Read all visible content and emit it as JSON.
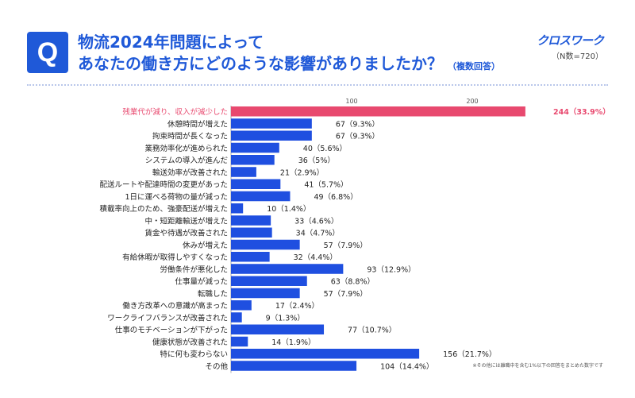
{
  "header": {
    "q_label": "Q",
    "title_line1": "物流2024年問題によって",
    "title_line2": "あなたの働き方にどのような影響がありましたか？",
    "title_note": "（複数回答）",
    "brand": "クロスワーク",
    "sample_size": "（N数=720）"
  },
  "footnote": "※その他には離職中を含む1%以下の回答をまとめた数字です",
  "colors": {
    "bar": "#1f4fe0",
    "highlight": "#e8496f",
    "label_highlight": "#e8496f"
  },
  "chart_data": {
    "type": "bar",
    "orientation": "horizontal",
    "categories": [
      "残業代が減り、収入が減少した",
      "休憩時間が増えた",
      "拘束時間が長くなった",
      "業務効率化が進められた",
      "システムの導入が進んだ",
      "輸送効率が改善された",
      "配送ルートや配達時間の変更があった",
      "1日に運べる荷物の量が減った",
      "積載率向上のため、強豪配送が増えた",
      "中・短距離輸送が増えた",
      "賃金や待遇が改善された",
      "休みが増えた",
      "有給休暇が取得しやすくなった",
      "労働条件が悪化した",
      "仕事量が減った",
      "転職した",
      "働き方改革への意識が高まった",
      "ワークライフバランスが改善された",
      "仕事のモチベーションが下がった",
      "健康状態が改善された",
      "特に何も変わらない",
      "その他"
    ],
    "values": [
      244,
      67,
      67,
      40,
      36,
      21,
      41,
      49,
      10,
      33,
      34,
      57,
      32,
      93,
      63,
      57,
      17,
      9,
      77,
      14,
      156,
      104
    ],
    "data_labels": [
      "244（33.9%）",
      "67（9.3%）",
      "67（9.3%）",
      "40（5.6%）",
      "36（5%）",
      "21（2.9%）",
      "41（5.7%）",
      "49（6.8%）",
      "10（1.4%）",
      "33（4.6%）",
      "34（4.7%）",
      "57（7.9%）",
      "32（4.4%）",
      "93（12.9%）",
      "63（8.8%）",
      "57（7.9%）",
      "17（2.4%）",
      "9（1.3%）",
      "77（10.7%）",
      "14（1.9%）",
      "156（21.7%）",
      "104（14.4%）"
    ],
    "highlight_index": 0,
    "x_ticks": [
      100,
      200
    ],
    "xlim": [
      0,
      250
    ]
  }
}
